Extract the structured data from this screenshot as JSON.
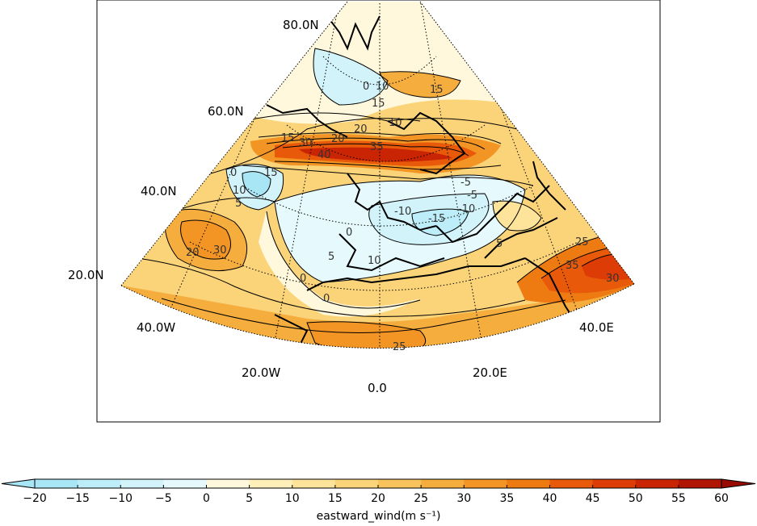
{
  "map": {
    "projection": "conic",
    "variable": "eastward_wind",
    "units": "m s⁻¹",
    "lat_labels": [
      "80.0N",
      "60.0N",
      "40.0N",
      "20.0N"
    ],
    "lon_labels": [
      "40.0W",
      "20.0W",
      "0.0",
      "20.0E",
      "40.0E"
    ],
    "contour_labels": [
      "0",
      "10",
      "15",
      "20",
      "10",
      "35",
      "30",
      "15",
      "20",
      "40",
      "15",
      "10",
      "0",
      "5",
      "-5",
      "-10",
      "-15",
      "-10",
      "5",
      "30",
      "20",
      "0",
      "5",
      "10",
      "0",
      "25",
      "25",
      "35",
      "30",
      "0",
      "15",
      "-5"
    ]
  },
  "colorbar": {
    "ticks": [
      "−20",
      "−15",
      "−10",
      "−5",
      "0",
      "5",
      "10",
      "15",
      "20",
      "25",
      "30",
      "35",
      "40",
      "45",
      "50",
      "55",
      "60"
    ],
    "colors": [
      "#a8e6f5",
      "#bdedf8",
      "#d2f3fa",
      "#e6f9fc",
      "#fff8dc",
      "#ffefb8",
      "#fde49a",
      "#fbd47a",
      "#f8c25c",
      "#f5ad3e",
      "#f29524",
      "#ee7a12",
      "#e85a0a",
      "#dd3c06",
      "#c92404",
      "#b01503",
      "#960a02"
    ],
    "label": "eastward_wind(m s⁻¹)"
  }
}
